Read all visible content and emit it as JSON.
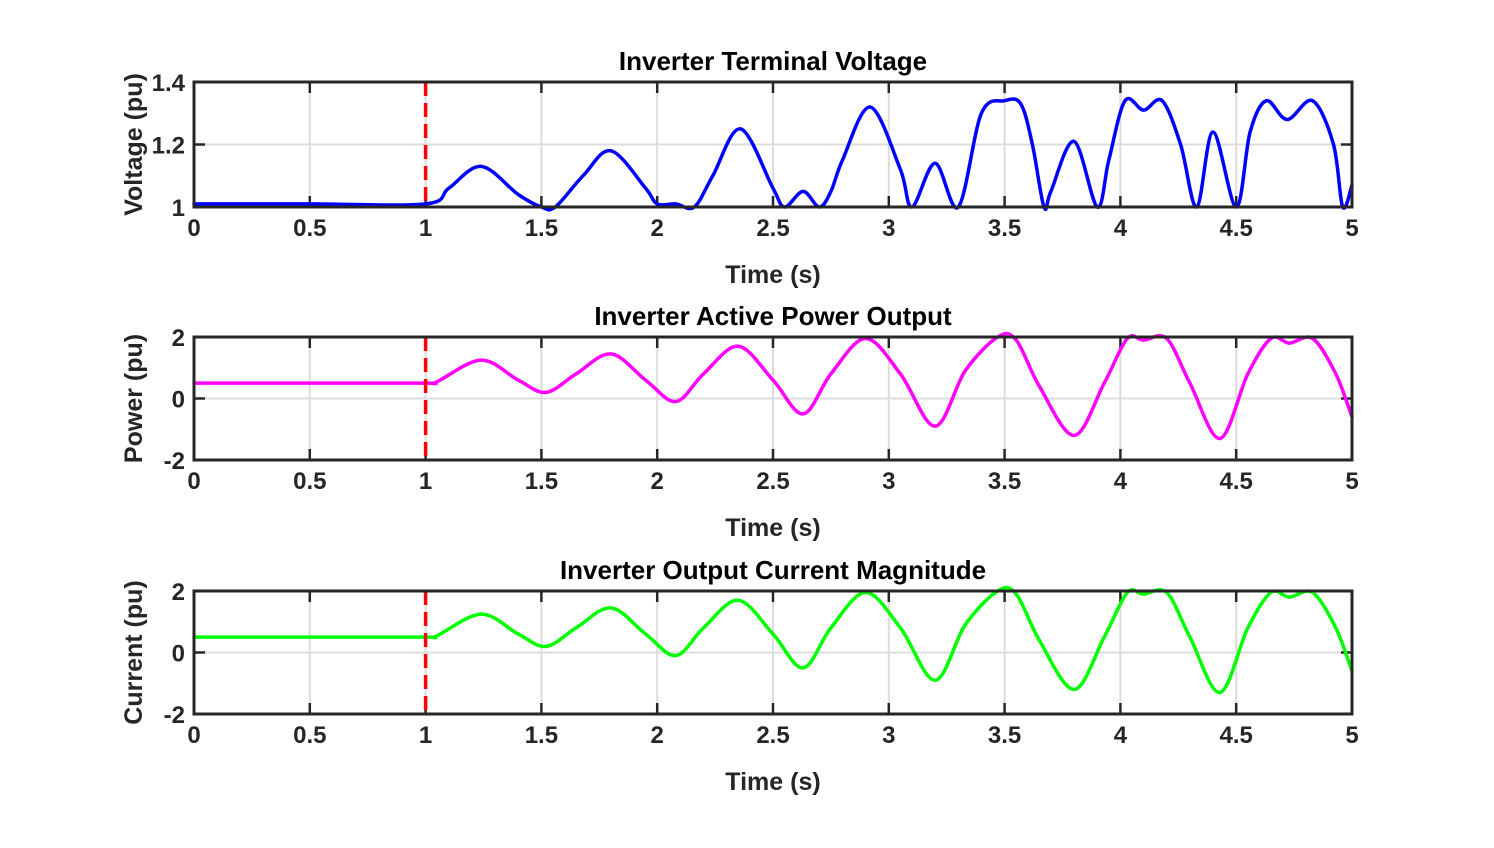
{
  "chart_data": [
    {
      "type": "line",
      "title": "Inverter Terminal Voltage",
      "xlabel": "Time (s)",
      "ylabel": "Voltage (pu)",
      "xlim": [
        0,
        5
      ],
      "ylim": [
        1,
        1.4
      ],
      "xticks": [
        "0",
        "0.5",
        "1",
        "1.5",
        "2",
        "2.5",
        "3",
        "3.5",
        "4",
        "4.5",
        "5"
      ],
      "yticks": [
        "1",
        "1.2",
        "1.4"
      ],
      "grid": true,
      "series": [
        {
          "color": "#0000ff",
          "x": [
            0,
            0.5,
            1.0,
            1.1,
            1.24,
            1.4,
            1.5,
            1.56,
            1.68,
            1.8,
            1.95,
            2.0,
            2.08,
            2.16,
            2.24,
            2.36,
            2.5,
            2.55,
            2.63,
            2.7,
            2.75,
            2.8,
            2.92,
            3.05,
            3.1,
            3.2,
            3.3,
            3.4,
            3.5,
            3.57,
            3.62,
            3.67,
            3.7,
            3.8,
            3.9,
            3.95,
            4.02,
            4.1,
            4.18,
            4.26,
            4.33,
            4.4,
            4.5,
            4.56,
            4.63,
            4.72,
            4.83,
            4.92,
            4.96,
            5.0
          ],
          "y": [
            1.01,
            1.01,
            1.01,
            1.06,
            1.13,
            1.04,
            1.0,
            1.0,
            1.1,
            1.18,
            1.06,
            1.01,
            1.01,
            1.0,
            1.1,
            1.25,
            1.06,
            1.0,
            1.05,
            1.0,
            1.05,
            1.15,
            1.32,
            1.12,
            1.0,
            1.14,
            1.0,
            1.3,
            1.34,
            1.33,
            1.2,
            1.0,
            1.05,
            1.21,
            1.0,
            1.15,
            1.34,
            1.31,
            1.34,
            1.2,
            1.0,
            1.24,
            1.0,
            1.24,
            1.34,
            1.28,
            1.34,
            1.2,
            1.0,
            1.07
          ]
        }
      ],
      "annotations": [
        {
          "type": "vline",
          "x": 1,
          "color": "#ff0000",
          "style": "dashed"
        }
      ]
    },
    {
      "type": "line",
      "title": "Inverter Active Power Output",
      "xlabel": "Time (s)",
      "ylabel": "Power (pu)",
      "xlim": [
        0,
        5
      ],
      "ylim": [
        -2,
        2
      ],
      "xticks": [
        "0",
        "0.5",
        "1",
        "1.5",
        "2",
        "2.5",
        "3",
        "3.5",
        "4",
        "4.5",
        "5"
      ],
      "yticks": [
        "-2",
        "0",
        "2"
      ],
      "grid": true,
      "series": [
        {
          "color": "#ff00ff",
          "x": [
            0,
            0.5,
            1.0,
            1.05,
            1.24,
            1.4,
            1.52,
            1.65,
            1.8,
            1.95,
            2.08,
            2.2,
            2.35,
            2.5,
            2.63,
            2.75,
            2.9,
            3.05,
            3.2,
            3.33,
            3.47,
            3.55,
            3.65,
            3.8,
            3.93,
            4.03,
            4.1,
            4.2,
            4.3,
            4.43,
            4.55,
            4.65,
            4.73,
            4.83,
            4.93,
            5.0
          ],
          "y": [
            0.5,
            0.5,
            0.5,
            0.55,
            1.25,
            0.6,
            0.2,
            0.8,
            1.45,
            0.6,
            -0.1,
            0.8,
            1.7,
            0.6,
            -0.5,
            0.8,
            1.95,
            0.8,
            -0.9,
            0.9,
            2.0,
            1.9,
            0.4,
            -1.2,
            0.5,
            1.95,
            1.9,
            1.95,
            0.5,
            -1.3,
            0.8,
            1.95,
            1.8,
            1.95,
            0.8,
            -0.6
          ]
        }
      ],
      "annotations": [
        {
          "type": "vline",
          "x": 1,
          "color": "#ff0000",
          "style": "dashed"
        }
      ]
    },
    {
      "type": "line",
      "title": "Inverter Output Current Magnitude",
      "xlabel": "Time (s)",
      "ylabel": "Current (pu)",
      "xlim": [
        0,
        5
      ],
      "ylim": [
        -2,
        2
      ],
      "xticks": [
        "0",
        "0.5",
        "1",
        "1.5",
        "2",
        "2.5",
        "3",
        "3.5",
        "4",
        "4.5",
        "5"
      ],
      "yticks": [
        "-2",
        "0",
        "2"
      ],
      "grid": true,
      "series": [
        {
          "color": "#00ff00",
          "x": [
            0,
            0.5,
            1.0,
            1.05,
            1.24,
            1.4,
            1.52,
            1.65,
            1.8,
            1.95,
            2.08,
            2.2,
            2.35,
            2.5,
            2.63,
            2.75,
            2.9,
            3.05,
            3.2,
            3.33,
            3.47,
            3.55,
            3.65,
            3.8,
            3.93,
            4.03,
            4.1,
            4.2,
            4.3,
            4.43,
            4.55,
            4.65,
            4.73,
            4.83,
            4.93,
            5.0
          ],
          "y": [
            0.5,
            0.5,
            0.5,
            0.55,
            1.25,
            0.6,
            0.2,
            0.8,
            1.45,
            0.6,
            -0.1,
            0.8,
            1.7,
            0.6,
            -0.5,
            0.8,
            1.95,
            0.8,
            -0.9,
            0.9,
            2.0,
            1.9,
            0.4,
            -1.2,
            0.5,
            1.95,
            1.9,
            1.95,
            0.5,
            -1.3,
            0.8,
            1.95,
            1.8,
            1.95,
            0.8,
            -0.6
          ]
        }
      ],
      "annotations": [
        {
          "type": "vline",
          "x": 1,
          "color": "#ff0000",
          "style": "dashed"
        }
      ]
    }
  ]
}
